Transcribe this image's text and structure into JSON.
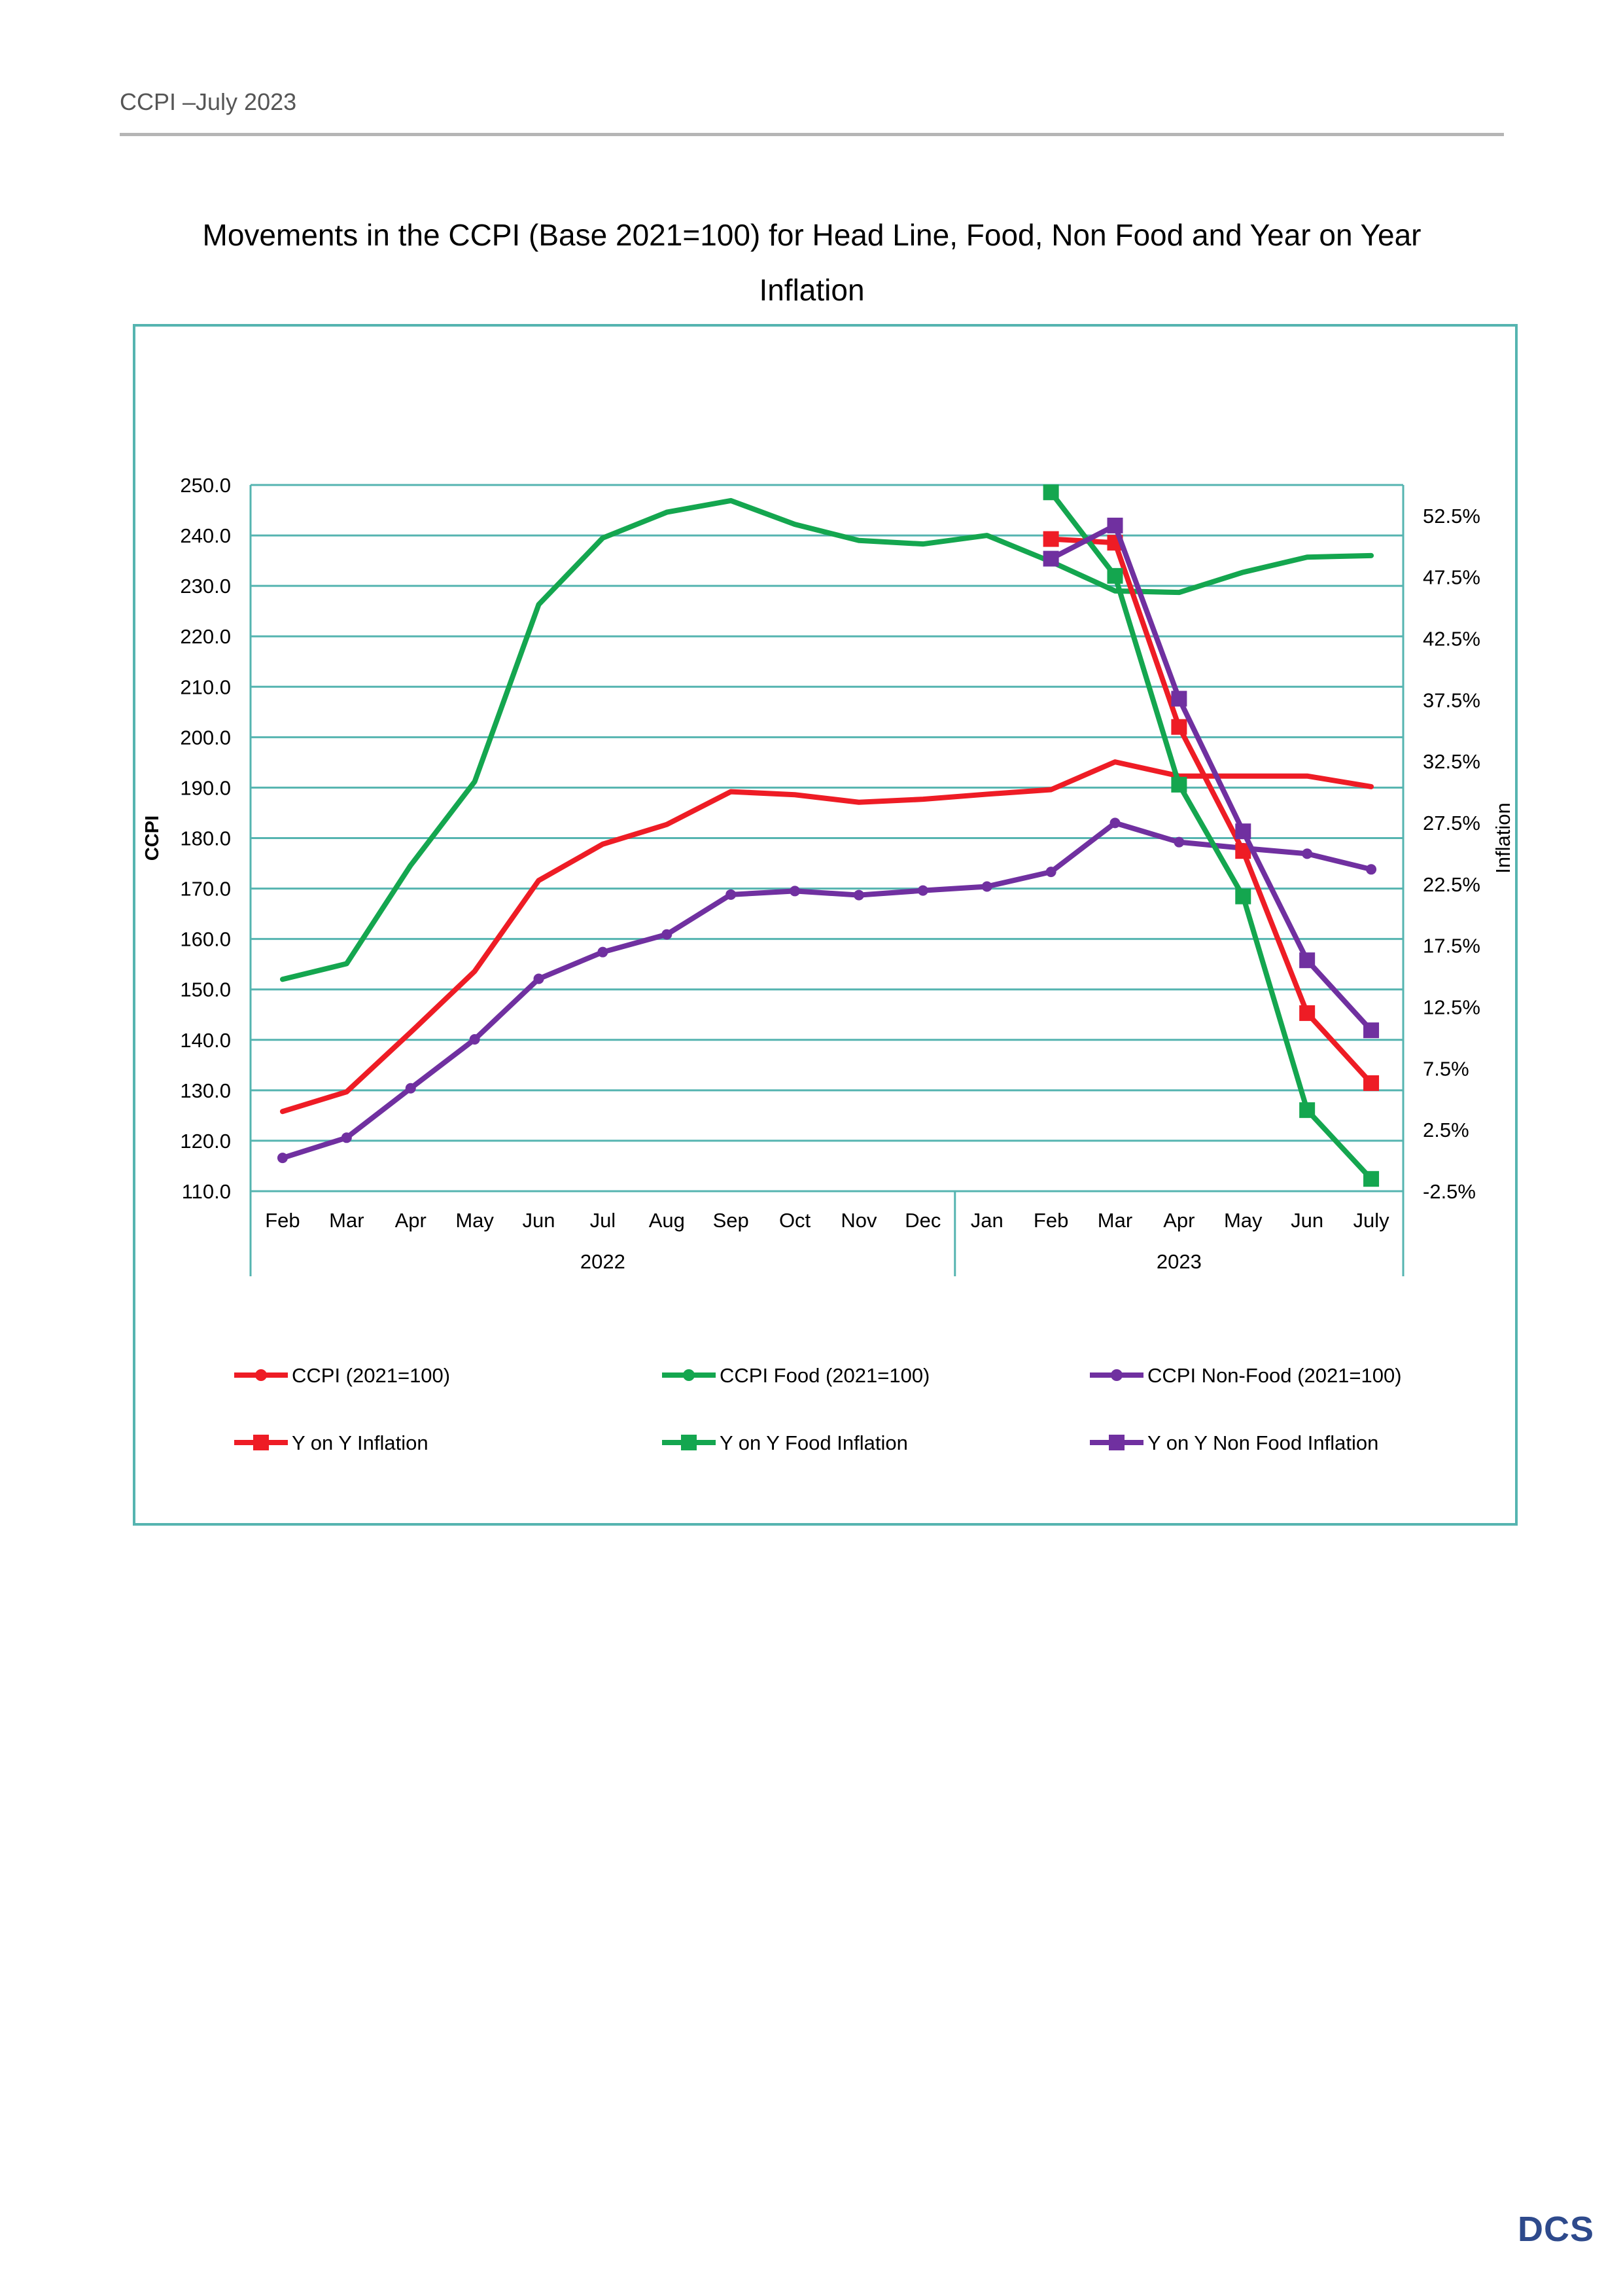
{
  "header": {
    "text": "CCPI –July 2023"
  },
  "title": {
    "line1": "Movements in the CCPI (Base 2021=100) for Head Line, Food, Non Food and Year on Year",
    "line2": "Inflation"
  },
  "logo": {
    "text": "DCS",
    "color": "#2e4a8c"
  },
  "chart_data": {
    "type": "line",
    "title": "Movements in the CCPI (Base 2021=100) for Head Line, Food, Non Food and Year on Year Inflation",
    "categories": [
      "Feb",
      "Mar",
      "Apr",
      "May",
      "Jun",
      "Jul",
      "Aug",
      "Sep",
      "Oct",
      "Nov",
      "Dec",
      "Jan",
      "Feb",
      "Mar",
      "Apr",
      "May",
      "Jun",
      "July"
    ],
    "year_groups": [
      {
        "label": "2022",
        "from": 0,
        "to": 10
      },
      {
        "label": "2023",
        "from": 11,
        "to": 17
      }
    ],
    "ylabel": "CCPI",
    "y2label": "Inflation",
    "ylim": [
      110,
      250
    ],
    "yticks": [
      "110.0",
      "120.0",
      "130.0",
      "140.0",
      "150.0",
      "160.0",
      "170.0",
      "180.0",
      "190.0",
      "200.0",
      "210.0",
      "220.0",
      "230.0",
      "240.0",
      "250.0"
    ],
    "y2lim": [
      -2.5,
      55
    ],
    "y2ticks": [
      "-2.5%",
      "2.5%",
      "7.5%",
      "12.5%",
      "17.5%",
      "22.5%",
      "27.5%",
      "32.5%",
      "37.5%",
      "42.5%",
      "47.5%",
      "52.5%"
    ],
    "grid": true,
    "legend_position": "bottom",
    "series": [
      {
        "name": "CCPI  (2021=100)",
        "axis": "left",
        "marker": "circle",
        "color": "#ee1c25",
        "show_markers": false,
        "values": [
          125.8,
          129.7,
          141.5,
          153.6,
          171.6,
          178.8,
          182.7,
          189.2,
          188.6,
          187.1,
          187.7,
          188.7,
          189.6,
          195.1,
          192.3,
          192.3,
          192.3,
          190.2
        ]
      },
      {
        "name": "CCPI Food (2021=100)",
        "axis": "left",
        "marker": "circle",
        "color": "#14a64f",
        "show_markers": false,
        "values": [
          152.0,
          155.1,
          174.6,
          191.2,
          226.3,
          239.5,
          244.6,
          246.9,
          242.2,
          239.0,
          238.3,
          240.0,
          234.8,
          229.0,
          228.7,
          232.7,
          235.7,
          236.0
        ]
      },
      {
        "name": "CCPI Non-Food (2021=100)",
        "axis": "left",
        "marker": "circle",
        "color": "#7030a0",
        "show_markers": true,
        "values": [
          116.6,
          120.6,
          130.4,
          140.1,
          152.1,
          157.4,
          160.9,
          168.8,
          169.5,
          168.7,
          169.6,
          170.4,
          173.3,
          183.0,
          179.2,
          178.0,
          176.9,
          173.8
        ]
      },
      {
        "name": "Y on Y  Inflation",
        "axis": "right",
        "marker": "square",
        "color": "#ee1c25",
        "values": [
          null,
          null,
          null,
          null,
          null,
          null,
          null,
          null,
          null,
          null,
          null,
          null,
          50.6,
          50.3,
          35.3,
          25.2,
          12.0,
          6.3
        ]
      },
      {
        "name": "Y on Y  Food Inflation",
        "axis": "right",
        "marker": "square",
        "color": "#14a64f",
        "values": [
          null,
          null,
          null,
          null,
          null,
          null,
          null,
          null,
          null,
          null,
          null,
          null,
          54.4,
          47.6,
          30.6,
          21.5,
          4.1,
          -1.5
        ]
      },
      {
        "name": "Y on Y  Non Food Inflation",
        "axis": "right",
        "marker": "square",
        "color": "#7030a0",
        "values": [
          null,
          null,
          null,
          null,
          null,
          null,
          null,
          null,
          null,
          null,
          null,
          null,
          49.0,
          51.7,
          37.6,
          26.8,
          16.3,
          10.6
        ]
      }
    ]
  }
}
